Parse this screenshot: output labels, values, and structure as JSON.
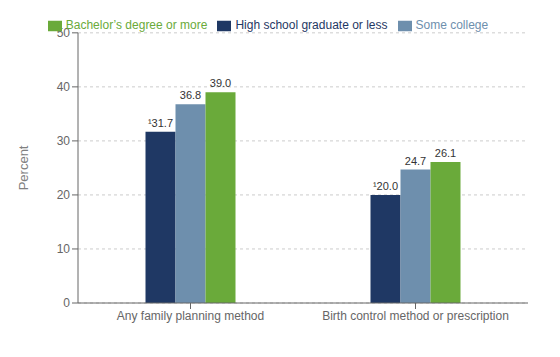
{
  "chart_data": {
    "type": "bar",
    "categories": [
      "Any family planning method",
      "Birth control method or prescription"
    ],
    "series": [
      {
        "name": "High school graduate or less",
        "color": "#1f3864",
        "values": [
          31.7,
          20.0
        ],
        "value_labels": [
          "¹31.7",
          "¹20.0"
        ]
      },
      {
        "name": "Some college",
        "color": "#6e8fad",
        "values": [
          36.8,
          24.7
        ],
        "value_labels": [
          "36.8",
          "24.7"
        ]
      },
      {
        "name": "Bachelor’s degree or more",
        "color": "#6aaa3a",
        "values": [
          39.0,
          26.1
        ],
        "value_labels": [
          "39.0",
          "26.1"
        ]
      }
    ],
    "ylabel": "Percent",
    "ylim": [
      0,
      50
    ],
    "yticks": [
      0,
      10,
      20,
      30,
      40,
      50
    ],
    "grid": true,
    "legend": "top",
    "data_labels": true
  }
}
